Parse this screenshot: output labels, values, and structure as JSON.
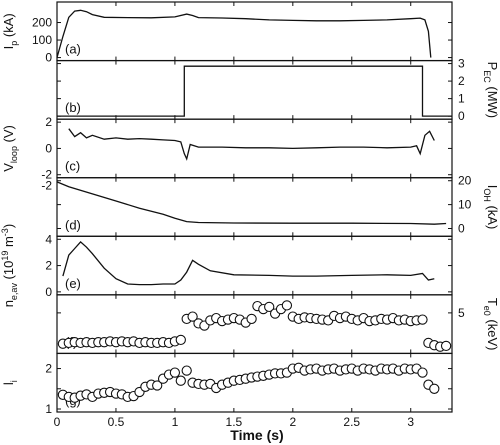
{
  "chart_data": {
    "type": "line",
    "layout_style": "stacked-panels",
    "xlabel": "Time (s)",
    "xlim": [
      0,
      3.35
    ],
    "xticks": [
      "0",
      "0.5",
      "1",
      "1.5",
      "2",
      "2.5",
      "3"
    ],
    "xtick_values": [
      0,
      0.5,
      1,
      1.5,
      2,
      2.5,
      3
    ],
    "panels": [
      {
        "tag": "(a)",
        "side": "left",
        "ylabel": "I",
        "ylabel_sub": "p",
        "ylabel_tail": " (kA)",
        "ylim": [
          0,
          300
        ],
        "yticks": [
          0,
          100,
          200
        ],
        "yticklabels": [
          "0",
          "100",
          "200"
        ],
        "style": "line",
        "x": [
          0,
          0.05,
          0.1,
          0.15,
          0.2,
          0.25,
          0.3,
          0.4,
          0.6,
          0.8,
          1.0,
          1.1,
          1.15,
          1.2,
          1.4,
          1.6,
          1.8,
          2.0,
          2.2,
          2.4,
          2.6,
          2.8,
          3.0,
          3.08,
          3.12,
          3.15,
          3.17
        ],
        "y": [
          0,
          120,
          230,
          265,
          270,
          262,
          245,
          230,
          228,
          227,
          232,
          248,
          240,
          228,
          226,
          222,
          215,
          212,
          210,
          210,
          212,
          215,
          222,
          225,
          215,
          150,
          0
        ]
      },
      {
        "tag": "(b)",
        "side": "right",
        "ylabel": "P",
        "ylabel_sub": "EC",
        "ylabel_tail": " (MW)",
        "ylim": [
          0,
          3
        ],
        "yticks": [
          0,
          1,
          2,
          3
        ],
        "yticklabels": [
          "0",
          "1",
          "2",
          "3"
        ],
        "style": "line",
        "x": [
          0,
          1.08,
          1.08,
          3.1,
          3.1,
          3.35
        ],
        "y": [
          0,
          0,
          2.85,
          2.85,
          0,
          0
        ]
      },
      {
        "tag": "(c)",
        "side": "left",
        "ylabel": "V",
        "ylabel_sub": "loop",
        "ylabel_tail": " (V)",
        "ylim": [
          -2,
          2
        ],
        "yticks": [
          -2,
          0,
          2
        ],
        "yticklabels": [
          "-2",
          "0",
          "2"
        ],
        "style": "line",
        "x": [
          0.1,
          0.15,
          0.2,
          0.25,
          0.3,
          0.4,
          0.5,
          0.6,
          0.7,
          0.8,
          0.9,
          1.0,
          1.05,
          1.08,
          1.1,
          1.13,
          1.2,
          1.4,
          1.6,
          1.8,
          2.0,
          2.2,
          2.4,
          2.6,
          2.8,
          3.0,
          3.05,
          3.08,
          3.12,
          3.16,
          3.2
        ],
        "y": [
          1.5,
          0.9,
          1.2,
          0.8,
          1.0,
          0.7,
          0.8,
          0.7,
          0.75,
          0.7,
          0.65,
          0.6,
          0.5,
          -0.4,
          -0.8,
          0.3,
          0.1,
          0.1,
          0.05,
          0.05,
          0.0,
          0.05,
          0.1,
          0.1,
          0.05,
          0.1,
          0.2,
          -0.4,
          1.0,
          1.3,
          0.6
        ]
      },
      {
        "tag": "(d)",
        "side": "right",
        "ylabel": "I",
        "ylabel_sub": "OH",
        "ylabel_tail": " (kA)",
        "ylim": [
          -2,
          20
        ],
        "yticks": [
          0,
          10,
          20
        ],
        "yticklabels": [
          "0",
          "10",
          "20"
        ],
        "style": "line",
        "x": [
          0,
          0.1,
          0.3,
          0.5,
          0.7,
          0.9,
          1.0,
          1.1,
          1.2,
          1.5,
          2.0,
          2.5,
          3.0,
          3.2,
          3.3
        ],
        "y": [
          19.5,
          17.5,
          14.5,
          11.5,
          8.5,
          6.0,
          4.3,
          2.9,
          2.5,
          2.3,
          2.2,
          2.2,
          2.1,
          1.8,
          2.1
        ],
        "left_tick_label": "-2"
      },
      {
        "tag": "(e)",
        "side": "left",
        "ylabel": "n",
        "ylabel_sub": "e,av",
        "ylabel_tail": " (10",
        "ylabel_sup": "19",
        "ylabel_end": " m",
        "ylabel_sup2": "-3",
        "ylabel_close": ")",
        "ylim": [
          0,
          4
        ],
        "yticks": [
          0,
          2,
          4
        ],
        "yticklabels": [
          "0",
          "2",
          "4"
        ],
        "style": "line",
        "x": [
          0.05,
          0.1,
          0.15,
          0.2,
          0.25,
          0.3,
          0.4,
          0.5,
          0.6,
          0.7,
          0.8,
          0.9,
          1.0,
          1.05,
          1.1,
          1.15,
          1.2,
          1.3,
          1.5,
          1.8,
          2.0,
          2.2,
          2.5,
          2.8,
          3.0,
          3.1,
          3.15,
          3.2
        ],
        "y": [
          1.2,
          2.8,
          3.3,
          3.8,
          3.4,
          2.9,
          1.8,
          1.0,
          0.6,
          0.55,
          0.55,
          0.6,
          0.6,
          0.9,
          1.5,
          2.4,
          2.1,
          1.6,
          1.3,
          1.25,
          1.2,
          1.2,
          1.25,
          1.3,
          1.25,
          1.4,
          0.9,
          1.0
        ]
      },
      {
        "tag": "(f)",
        "side": "right",
        "ylabel": "T",
        "ylabel_sub": "e0",
        "ylabel_tail": " (keV)",
        "ylim": [
          0,
          7
        ],
        "yticks": [
          5
        ],
        "yticklabels": [
          "5"
        ],
        "style": "markers",
        "x": [
          0.05,
          0.1,
          0.15,
          0.2,
          0.25,
          0.3,
          0.35,
          0.4,
          0.45,
          0.5,
          0.55,
          0.6,
          0.65,
          0.7,
          0.75,
          0.8,
          0.85,
          0.9,
          0.95,
          1.0,
          1.05,
          1.1,
          1.15,
          1.2,
          1.25,
          1.3,
          1.35,
          1.4,
          1.45,
          1.5,
          1.55,
          1.6,
          1.65,
          1.7,
          1.75,
          1.8,
          1.85,
          1.9,
          1.95,
          2.0,
          2.05,
          2.1,
          2.15,
          2.2,
          2.25,
          2.3,
          2.35,
          2.4,
          2.45,
          2.5,
          2.55,
          2.6,
          2.65,
          2.7,
          2.75,
          2.8,
          2.85,
          2.9,
          2.95,
          3.0,
          3.05,
          3.1,
          3.15,
          3.2,
          3.25,
          3.3
        ],
        "y": [
          0.9,
          1.0,
          1.1,
          1.0,
          1.1,
          1.0,
          1.1,
          1.1,
          1.2,
          1.1,
          1.2,
          1.1,
          1.2,
          1.0,
          1.1,
          1.0,
          1.0,
          1.1,
          1.0,
          1.2,
          1.4,
          4.2,
          4.5,
          3.6,
          3.3,
          4.0,
          4.3,
          3.9,
          4.1,
          4.3,
          4.1,
          3.7,
          4.2,
          5.9,
          5.5,
          5.8,
          4.9,
          5.5,
          6.0,
          4.5,
          4.2,
          4.4,
          4.3,
          4.2,
          4.1,
          4.0,
          4.6,
          4.3,
          4.5,
          4.2,
          4.0,
          4.3,
          3.9,
          4.0,
          4.2,
          4.1,
          4.3,
          4.0,
          4.1,
          3.9,
          4.0,
          4.1,
          1.0,
          0.7,
          0.5,
          0.6
        ]
      },
      {
        "tag": "(g)",
        "side": "left",
        "ylabel": "l",
        "ylabel_sub": "i",
        "ylabel_tail": "",
        "ylim": [
          1,
          2.3
        ],
        "yticks": [
          1,
          1.5,
          2
        ],
        "yticklabels": [
          "1",
          "",
          "2"
        ],
        "style": "markers",
        "x": [
          0.05,
          0.1,
          0.15,
          0.2,
          0.25,
          0.3,
          0.35,
          0.4,
          0.45,
          0.5,
          0.55,
          0.6,
          0.65,
          0.7,
          0.75,
          0.8,
          0.85,
          0.9,
          0.95,
          1.0,
          1.05,
          1.1,
          1.15,
          1.2,
          1.25,
          1.3,
          1.35,
          1.4,
          1.45,
          1.5,
          1.55,
          1.6,
          1.65,
          1.7,
          1.75,
          1.8,
          1.85,
          1.9,
          1.95,
          2.0,
          2.05,
          2.1,
          2.15,
          2.2,
          2.25,
          2.3,
          2.35,
          2.4,
          2.45,
          2.5,
          2.55,
          2.6,
          2.65,
          2.7,
          2.75,
          2.8,
          2.85,
          2.9,
          2.95,
          3.0,
          3.05,
          3.1,
          3.15,
          3.2
        ],
        "y": [
          1.35,
          1.3,
          1.28,
          1.33,
          1.36,
          1.3,
          1.38,
          1.4,
          1.42,
          1.38,
          1.36,
          1.3,
          1.32,
          1.42,
          1.55,
          1.6,
          1.58,
          1.75,
          1.85,
          1.9,
          1.7,
          1.95,
          1.65,
          1.62,
          1.6,
          1.62,
          1.52,
          1.6,
          1.65,
          1.7,
          1.72,
          1.75,
          1.78,
          1.8,
          1.82,
          1.85,
          1.88,
          1.88,
          1.9,
          2.0,
          2.02,
          1.95,
          1.98,
          2.0,
          1.95,
          1.98,
          2.0,
          1.95,
          1.98,
          2.0,
          1.95,
          2.0,
          1.98,
          1.95,
          2.0,
          1.98,
          2.0,
          1.95,
          2.0,
          1.98,
          2.0,
          1.9,
          1.6,
          1.5
        ]
      }
    ]
  }
}
